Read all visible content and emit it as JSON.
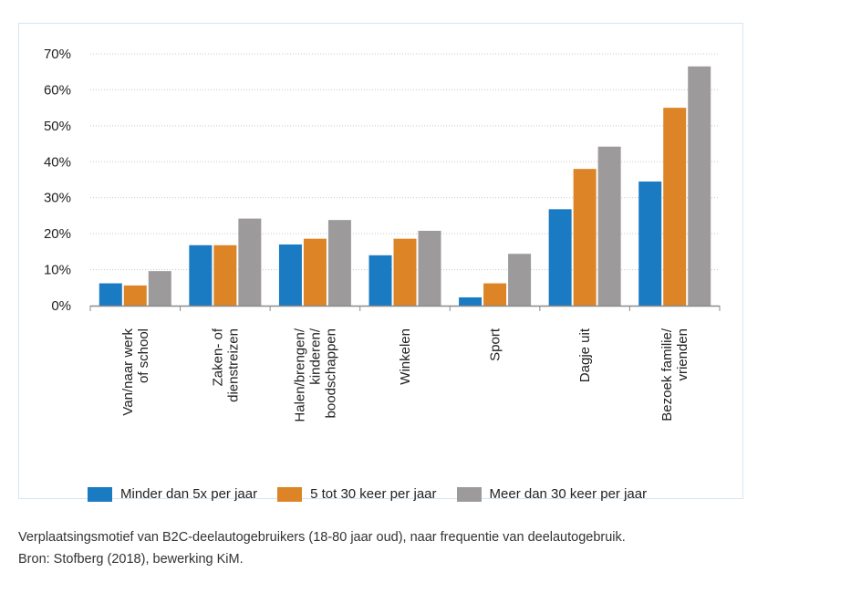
{
  "caption": {
    "line1": "Verplaatsingsmotief van B2C-deelautogebruikers (18-80 jaar oud), naar frequentie van deelautogebruik.",
    "line2": "Bron: Stofberg (2018), bewerking KiM."
  },
  "colors": {
    "series1": "#1a7ac2",
    "series2": "#dd8526",
    "series3": "#9c9a9b",
    "grid": "#c8c8c8",
    "axis": "#8a8a8a",
    "frame": "#d6e6f1"
  },
  "chart_data": {
    "type": "bar",
    "ylim": [
      0,
      70
    ],
    "yticks": [
      0,
      10,
      20,
      30,
      40,
      50,
      60,
      70
    ],
    "ytick_labels": [
      "0%",
      "10%",
      "20%",
      "30%",
      "40%",
      "50%",
      "60%",
      "70%"
    ],
    "grid": true,
    "legend_position": "bottom",
    "categories": [
      [
        "Van/naar werk",
        "of school"
      ],
      [
        "Zaken- of",
        "dienstreizen"
      ],
      [
        "Halen/brengen/",
        "kinderen/",
        "boodschappen"
      ],
      [
        "Winkelen"
      ],
      [
        "Sport"
      ],
      [
        "Dagje uit"
      ],
      [
        "Bezoek familie/",
        "vrienden"
      ]
    ],
    "series": [
      {
        "name": "Minder dan 5x per jaar",
        "values": [
          6.2,
          16.8,
          17.0,
          14.0,
          2.3,
          26.8,
          34.5
        ]
      },
      {
        "name": "5 tot 30 keer per jaar",
        "values": [
          5.6,
          16.8,
          18.6,
          18.6,
          6.2,
          38.0,
          55.0
        ]
      },
      {
        "name": "Meer dan 30 keer per jaar",
        "values": [
          9.6,
          24.2,
          23.8,
          20.8,
          14.4,
          44.2,
          66.5
        ]
      }
    ]
  }
}
